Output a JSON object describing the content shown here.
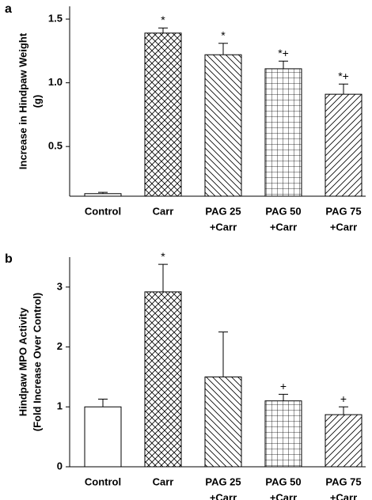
{
  "chart_data": [
    {
      "type": "bar",
      "panel": "a",
      "ylabel": [
        "Increase in Hindpaw Weight",
        "(g)"
      ],
      "categories": [
        [
          "Control"
        ],
        [
          "Carr"
        ],
        [
          "PAG 25",
          "+Carr"
        ],
        [
          "PAG 50",
          "+Carr"
        ],
        [
          "PAG 75",
          "+Carr"
        ]
      ],
      "values": [
        0.13,
        1.39,
        1.22,
        1.11,
        0.91
      ],
      "errors": [
        0.01,
        0.04,
        0.09,
        0.06,
        0.08
      ],
      "annotations": [
        null,
        "*",
        "*",
        "*+",
        "*+"
      ],
      "hatches": [
        "none",
        "crosshatch",
        "backslash",
        "grid",
        "slash"
      ],
      "color": "#000000",
      "ylim": [
        0.11,
        1.6
      ],
      "yticks": [
        0.5,
        {
          "value": 1,
          "label": "1.0"
        },
        1.5
      ]
    },
    {
      "type": "bar",
      "panel": "b",
      "ylabel": [
        "Hindpaw MPO Activity",
        "(Fold Increase Over Control)"
      ],
      "categories": [
        [
          "Control"
        ],
        [
          "Carr"
        ],
        [
          "PAG 25",
          "+Carr"
        ],
        [
          "PAG 50",
          "+Carr"
        ],
        [
          "PAG 75",
          "+Carr"
        ]
      ],
      "values": [
        1.0,
        2.92,
        1.5,
        1.1,
        0.87
      ],
      "errors": [
        0.13,
        0.46,
        0.75,
        0.11,
        0.13
      ],
      "annotations": [
        null,
        "*",
        null,
        "+",
        "+"
      ],
      "hatches": [
        "none",
        "crosshatch",
        "backslash",
        "grid",
        "slash"
      ],
      "color": "#000000",
      "ylim": [
        0,
        3.5
      ],
      "yticks": [
        0,
        1,
        2,
        3
      ]
    }
  ]
}
